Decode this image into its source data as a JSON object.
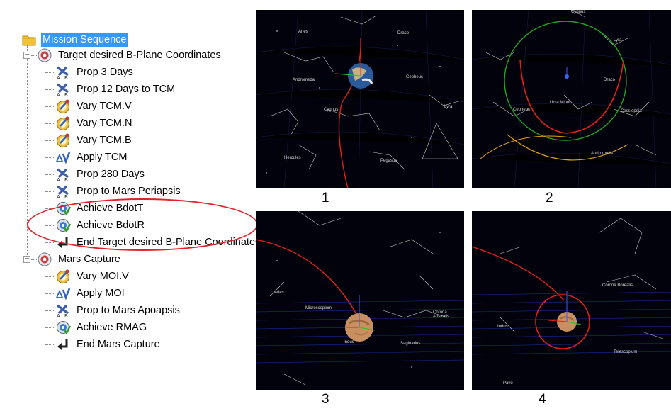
{
  "tree": {
    "root": {
      "label": "Mission Sequence",
      "icon": "folder-icon"
    },
    "groups": [
      {
        "label": "Target desired B-Plane Coordinates",
        "icon": "target-icon",
        "items": [
          {
            "label": "Prop 3 Days",
            "icon": "propagate-icon"
          },
          {
            "label": "Prop 12 Days to TCM",
            "icon": "propagate-icon"
          },
          {
            "label": "Vary TCM.V",
            "icon": "vary-icon"
          },
          {
            "label": "Vary TCM.N",
            "icon": "vary-icon"
          },
          {
            "label": "Vary TCM.B",
            "icon": "vary-icon"
          },
          {
            "label": "Apply TCM",
            "icon": "delta-v-icon"
          },
          {
            "label": "Prop 280 Days",
            "icon": "propagate-icon"
          },
          {
            "label": "Prop to Mars Periapsis",
            "icon": "propagate-icon"
          },
          {
            "label": "Achieve BdotT",
            "icon": "achieve-icon"
          },
          {
            "label": "Achieve BdotR",
            "icon": "achieve-icon"
          },
          {
            "label": "End Target desired B-Plane Coordinates",
            "icon": "end-arrow-icon"
          }
        ]
      },
      {
        "label": "Mars Capture",
        "icon": "target-icon",
        "items": [
          {
            "label": "Vary MOI.V",
            "icon": "vary-icon"
          },
          {
            "label": "Apply MOI",
            "icon": "delta-v-icon"
          },
          {
            "label": "Prop to Mars Apoapsis",
            "icon": "propagate-icon"
          },
          {
            "label": "Achieve RMAG",
            "icon": "achieve-icon"
          },
          {
            "label": "End Mars Capture",
            "icon": "end-arrow-icon"
          }
        ]
      }
    ]
  },
  "panels": [
    {
      "number": "1",
      "constellations": [
        "Aries",
        "Draco",
        "Andromeda",
        "Cepheus",
        "Cygnus",
        "Lyra",
        "Hercules",
        "Pegasus"
      ]
    },
    {
      "number": "2",
      "constellations": [
        "Cygnus",
        "Lyra",
        "Draco",
        "Ursa Minor",
        "Cepheus",
        "Cassiopeia",
        "Andromeda"
      ]
    },
    {
      "number": "3",
      "constellations": [
        "Aries",
        "Microscopium",
        "Corona Australis",
        "Sagittarius",
        "Indus"
      ]
    },
    {
      "number": "4",
      "constellations": [
        "Corona Borealis",
        "Indus",
        "Telescopium",
        "Pavo"
      ]
    }
  ],
  "colors": {
    "selection": "#3399ff",
    "highlight_oval": "#e0202a",
    "trajectory": "#e8201a",
    "space": "#02020c"
  }
}
